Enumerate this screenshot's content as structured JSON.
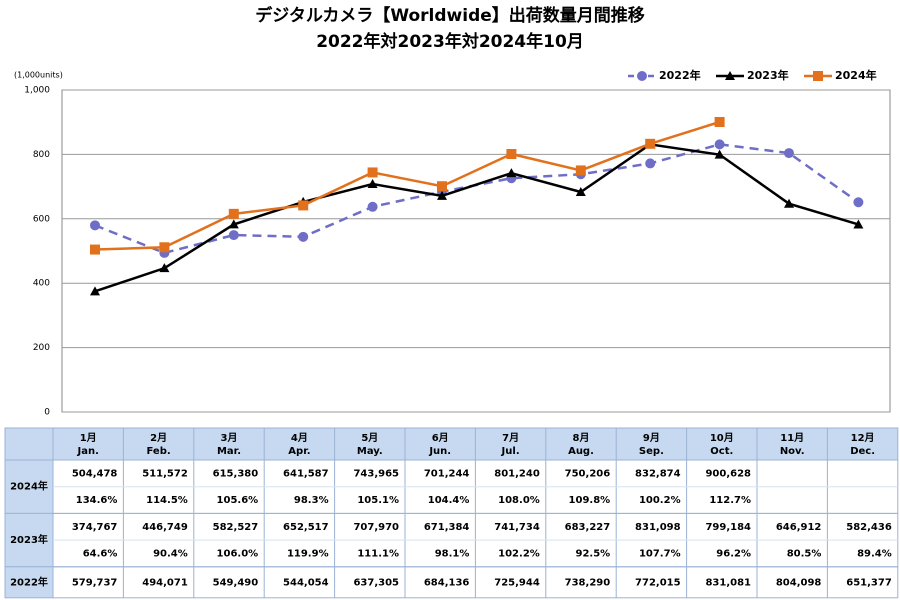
{
  "chart_data": {
    "type": "line",
    "title": "デジタルカメラ【Worldwide】出荷数量月間推移",
    "subtitle": "2022年対2023年対2024年10月",
    "y_label": "(1,000units)",
    "categories": [
      "1月",
      "2月",
      "3月",
      "4月",
      "5月",
      "6月",
      "7月",
      "8月",
      "9月",
      "10月",
      "11月",
      "12月"
    ],
    "categories_en": [
      "Jan.",
      "Feb.",
      "Mar.",
      "Apr.",
      "May.",
      "Jun.",
      "Jul.",
      "Aug.",
      "Sep.",
      "Oct.",
      "Nov.",
      "Dec."
    ],
    "ylim": [
      0,
      1000
    ],
    "yticks": [
      0,
      200,
      400,
      600,
      800,
      {
        "value": 1000,
        "label": "1,000"
      }
    ],
    "grid": true,
    "legend": "top-right",
    "series": [
      {
        "name": "2022年",
        "color": "#6e6ec8",
        "dash": true,
        "marker": "circle",
        "values": [
          579.737,
          494.071,
          549.49,
          544.054,
          637.305,
          684.136,
          725.944,
          738.29,
          772.015,
          831.081,
          804.098,
          651.377
        ],
        "value_labels": [
          "579,737",
          "494,071",
          "549,490",
          "544,054",
          "637,305",
          "684,136",
          "725,944",
          "738,290",
          "772,015",
          "831,081",
          "804,098",
          "651,377"
        ]
      },
      {
        "name": "2023年",
        "color": "#000000",
        "dash": false,
        "marker": "triangle",
        "values": [
          374.767,
          446.749,
          582.527,
          652.517,
          707.97,
          671.384,
          741.734,
          683.227,
          831.098,
          799.184,
          646.912,
          582.436
        ],
        "value_labels": [
          "374,767",
          "446,749",
          "582,527",
          "652,517",
          "707,970",
          "671,384",
          "741,734",
          "683,227",
          "831,098",
          "799,184",
          "646,912",
          "582,436"
        ],
        "ratio_labels": [
          "64.6%",
          "90.4%",
          "106.0%",
          "119.9%",
          "111.1%",
          "98.1%",
          "102.2%",
          "92.5%",
          "107.7%",
          "96.2%",
          "80.5%",
          "89.4%"
        ]
      },
      {
        "name": "2024年",
        "color": "#e2711d",
        "dash": false,
        "marker": "square",
        "values": [
          504.478,
          511.572,
          615.38,
          641.587,
          743.965,
          701.244,
          801.24,
          750.206,
          832.874,
          900.628,
          null,
          null
        ],
        "value_labels": [
          "504,478",
          "511,572",
          "615,380",
          "641,587",
          "743,965",
          "701,244",
          "801,240",
          "750,206",
          "832,874",
          "900,628",
          null,
          null
        ],
        "ratio_labels": [
          "134.6%",
          "114.5%",
          "105.6%",
          "98.3%",
          "105.1%",
          "104.4%",
          "108.0%",
          "109.8%",
          "100.2%",
          "112.7%",
          null,
          null
        ]
      }
    ]
  }
}
